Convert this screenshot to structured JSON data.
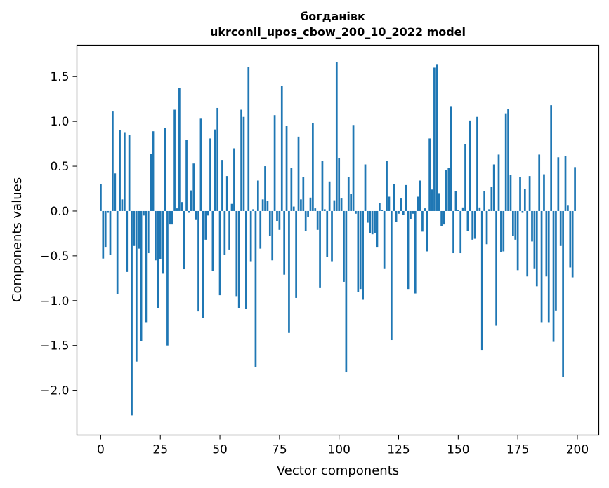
{
  "chart_data": {
    "type": "bar",
    "title": "богданівк",
    "subtitle": "ukrconll_upos_cbow_200_10_2022 model",
    "xlabel": "Vector components",
    "ylabel": "Components values",
    "xlim": [
      -10,
      209
    ],
    "ylim": [
      -2.5,
      1.85
    ],
    "xticks": [
      0,
      25,
      50,
      75,
      100,
      125,
      150,
      175,
      200
    ],
    "xtick_labels": [
      "0",
      "25",
      "50",
      "75",
      "100",
      "125",
      "150",
      "175",
      "200"
    ],
    "yticks": [
      -2.0,
      -1.5,
      -1.0,
      -0.5,
      0.0,
      0.5,
      1.0,
      1.5
    ],
    "ytick_labels": [
      "−2.0",
      "−1.5",
      "−1.0",
      "−0.5",
      "0.0",
      "0.5",
      "1.0",
      "1.5"
    ],
    "bar_color": "#1f77b4",
    "values": [
      0.3,
      -0.53,
      -0.4,
      -0.02,
      -0.49,
      1.11,
      0.42,
      -0.93,
      0.9,
      0.13,
      0.88,
      -0.68,
      0.85,
      -2.28,
      -0.39,
      -1.68,
      -0.42,
      -1.45,
      -0.05,
      -1.24,
      -0.47,
      0.64,
      0.89,
      -0.55,
      -1.08,
      -0.54,
      -0.7,
      0.93,
      -1.5,
      -0.15,
      -0.15,
      1.13,
      0.03,
      1.37,
      0.1,
      -0.65,
      0.79,
      -0.02,
      0.23,
      0.53,
      -0.1,
      -1.12,
      1.03,
      -1.19,
      -0.32,
      -0.05,
      0.81,
      -0.67,
      0.91,
      1.15,
      -0.94,
      0.57,
      -0.49,
      0.39,
      -0.43,
      0.08,
      0.7,
      -0.95,
      -1.08,
      1.13,
      1.05,
      -1.09,
      1.61,
      -0.56,
      0.02,
      -1.74,
      0.34,
      -0.42,
      0.13,
      0.5,
      0.11,
      -0.28,
      -0.55,
      1.07,
      -0.11,
      -0.21,
      1.4,
      -0.71,
      0.95,
      -1.36,
      0.48,
      0.05,
      -0.97,
      0.83,
      0.13,
      0.38,
      -0.22,
      -0.07,
      0.15,
      0.98,
      0.03,
      -0.21,
      -0.86,
      0.56,
      0.02,
      -0.51,
      0.33,
      -0.56,
      0.12,
      1.66,
      0.59,
      0.14,
      -0.79,
      -1.8,
      0.38,
      0.19,
      0.96,
      -0.03,
      -0.9,
      -0.87,
      -0.99,
      0.52,
      -0.13,
      -0.25,
      -0.26,
      -0.25,
      -0.4,
      0.09,
      0.01,
      -0.64,
      0.56,
      0.16,
      -1.44,
      0.3,
      -0.12,
      -0.03,
      0.14,
      -0.04,
      0.29,
      -0.87,
      -0.09,
      -0.03,
      -0.92,
      0.16,
      0.34,
      -0.23,
      0.03,
      -0.45,
      0.81,
      0.24,
      1.6,
      1.64,
      0.2,
      -0.17,
      -0.15,
      0.46,
      0.48,
      1.17,
      -0.47,
      0.22,
      0.01,
      -0.47,
      0.04,
      0.75,
      -0.22,
      1.01,
      -0.32,
      -0.31,
      1.05,
      0.04,
      -1.55,
      0.22,
      -0.37,
      0.02,
      0.27,
      0.52,
      -1.28,
      0.63,
      -0.46,
      -0.45,
      1.09,
      1.14,
      0.4,
      -0.28,
      -0.32,
      -0.66,
      0.38,
      -0.02,
      0.25,
      -0.73,
      0.39,
      -0.34,
      -0.64,
      -0.84,
      0.63,
      -1.24,
      0.41,
      -0.73,
      -1.24,
      1.18,
      -1.46,
      -1.11,
      0.6,
      -0.39,
      -1.85,
      0.61,
      0.06,
      -0.63,
      -0.74,
      0.49
    ]
  }
}
